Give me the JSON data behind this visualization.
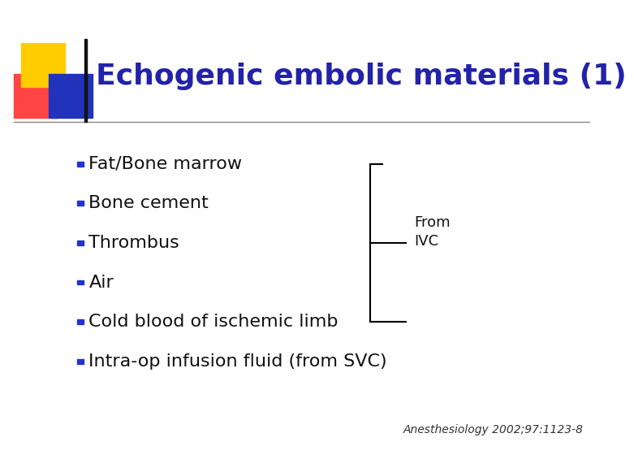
{
  "title": "Echogenic embolic materials (1)",
  "title_color": "#2222aa",
  "title_fontsize": 26,
  "bullet_items": [
    "Fat/Bone marrow",
    "Bone cement",
    "Thrombus",
    "Air",
    "Cold blood of ischemic limb",
    "Intra-op infusion fluid (from SVC)"
  ],
  "bullet_fontsize": 16,
  "bullet_color": "#111111",
  "bullet_marker_color": "#2233cc",
  "bracket_label": "From\nIVC",
  "bracket_label_fontsize": 13,
  "footnote": "Anesthesiology 2002;97:1123-8",
  "footnote_fontsize": 10,
  "bg_color": "#ffffff",
  "deco_yellow": "#ffcc00",
  "deco_red": "#ff4444",
  "deco_blue": "#2233bb",
  "title_line_color": "#888888"
}
